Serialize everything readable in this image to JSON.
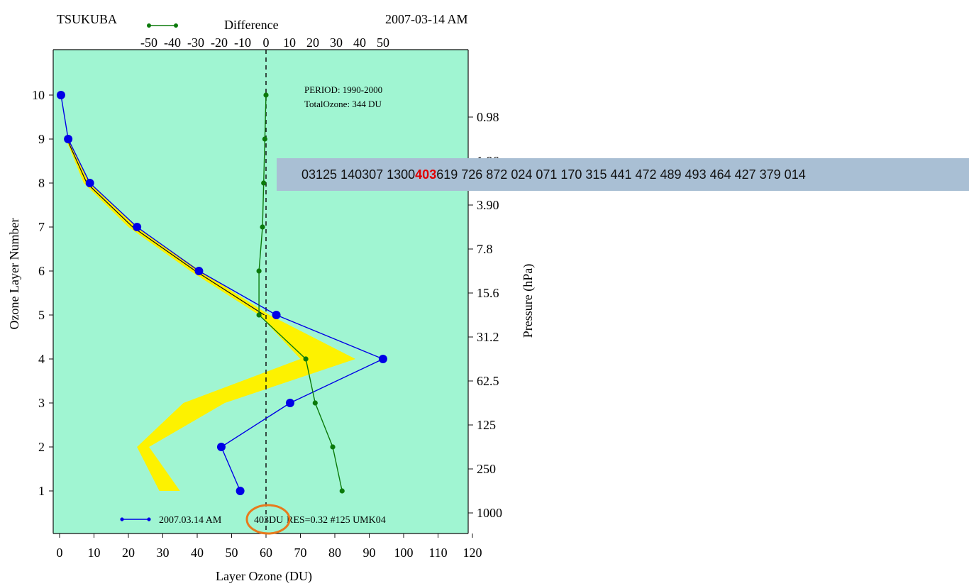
{
  "chart_data": {
    "type": "line",
    "station": "TSUKUBA",
    "date_label": "2007-03-14 AM",
    "legend_difference": "Difference",
    "xlabel": "Layer Ozone (DU)",
    "ylabel": "Ozone Layer Number",
    "y2label": "Pressure (hPa)",
    "xlim": [
      0,
      120
    ],
    "ylim": [
      0,
      11
    ],
    "x_ticks": [
      "0",
      "10",
      "20",
      "30",
      "40",
      "50",
      "60",
      "70",
      "80",
      "90",
      "100",
      "110",
      "120"
    ],
    "y_ticks": [
      "1",
      "2",
      "3",
      "4",
      "5",
      "6",
      "7",
      "8",
      "9",
      "10"
    ],
    "top_axis": {
      "label": "Difference",
      "ticks": [
        "-50",
        "-40",
        "-30",
        "-20",
        "-10",
        "0",
        "10",
        "20",
        "30",
        "40",
        "50"
      ],
      "tick_values": [
        -50,
        -40,
        -30,
        -20,
        -10,
        0,
        10,
        20,
        30,
        40,
        50
      ]
    },
    "pressure_ticks": [
      "0.98",
      "1.96",
      "3.90",
      "7.8",
      "15.6",
      "31.2",
      "62.5",
      "125",
      "250",
      "1000"
    ],
    "pressure_tick_layers": [
      9.5,
      8.5,
      7.5,
      6.5,
      5.5,
      4.5,
      3.5,
      2.5,
      1.5,
      0.5
    ],
    "grid": false,
    "background_color": "#a0f5d2",
    "annotation_period": "PERIOD: 1990-2000",
    "annotation_total": "TotalOzone: 344 DU",
    "legend_profile_text": "2007.03.14 AM",
    "legend_total_highlight": "403DU",
    "legend_rest": "RES=0.32 #125  UMK04",
    "climatology_band": {
      "color": "#fdf200",
      "layers": [
        1,
        2,
        3,
        4,
        5,
        6,
        7,
        8,
        9
      ],
      "low": [
        29,
        22.5,
        36,
        70,
        58,
        38,
        20,
        7,
        1.8
      ],
      "high": [
        35,
        26,
        48,
        86,
        61,
        41,
        22.5,
        8.8,
        2.5
      ]
    },
    "series": [
      {
        "name": "2007.03.14 AM",
        "color": "#0000e6",
        "layers": [
          1,
          2,
          3,
          4,
          5,
          6,
          7,
          8,
          9,
          10
        ],
        "x": [
          52.5,
          47,
          67,
          94,
          63,
          40.5,
          22.5,
          8.8,
          2.5,
          0.4
        ]
      },
      {
        "name": "Difference",
        "color": "#0b7a0b",
        "layers": [
          1,
          2,
          3,
          4,
          5,
          6,
          7,
          8,
          9,
          10
        ],
        "x": [
          32.5,
          28.5,
          21,
          17,
          -3,
          -3,
          -1.5,
          -1,
          -0.5,
          0
        ]
      }
    ],
    "mean_line_x": 60
  },
  "overlay": {
    "banner_pre": "03125 140307 1300",
    "banner_highlight": "403",
    "banner_post": " 619 726 872 024 071 170 315 441 472 489 493 464 427 379 014",
    "highlight_color": "#e10000",
    "circle_color": "#e87a1c"
  }
}
